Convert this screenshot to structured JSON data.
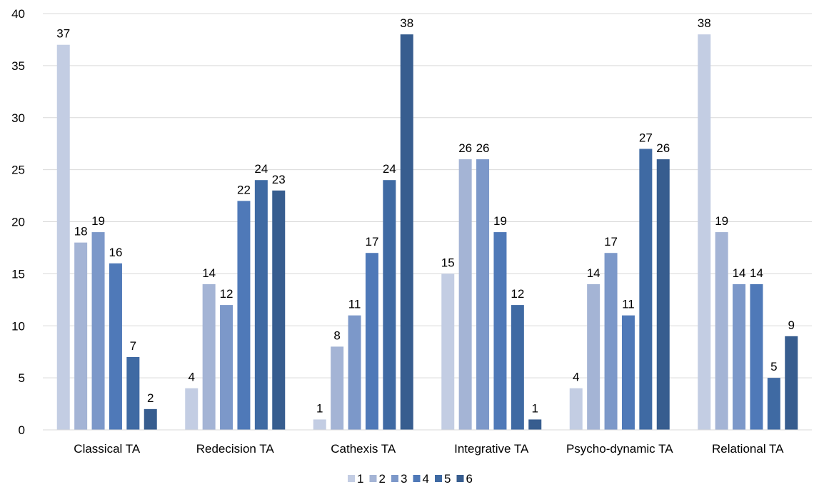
{
  "chart_data": {
    "type": "bar",
    "title": "",
    "xlabel": "",
    "ylabel": "",
    "ylim": [
      0,
      40
    ],
    "yticks": [
      0,
      5,
      10,
      15,
      20,
      25,
      30,
      35,
      40
    ],
    "grid": true,
    "legend_position": "bottom",
    "categories": [
      "Classical TA",
      "Redecision TA",
      "Cathexis TA",
      "Integrative TA",
      "Psycho-dynamic TA",
      "Relational TA"
    ],
    "series": [
      {
        "name": "1",
        "color": "#c3cde3",
        "values": [
          37,
          4,
          1,
          15,
          4,
          38
        ]
      },
      {
        "name": "2",
        "color": "#a4b4d5",
        "values": [
          18,
          14,
          8,
          26,
          14,
          19
        ]
      },
      {
        "name": "3",
        "color": "#7c98c9",
        "values": [
          19,
          12,
          11,
          26,
          17,
          14
        ]
      },
      {
        "name": "4",
        "color": "#4f79b8",
        "values": [
          16,
          22,
          17,
          19,
          11,
          14
        ]
      },
      {
        "name": "5",
        "color": "#3f6aa3",
        "values": [
          7,
          24,
          24,
          12,
          27,
          5
        ]
      },
      {
        "name": "6",
        "color": "#375d8f",
        "values": [
          2,
          23,
          38,
          1,
          26,
          9
        ]
      }
    ]
  }
}
